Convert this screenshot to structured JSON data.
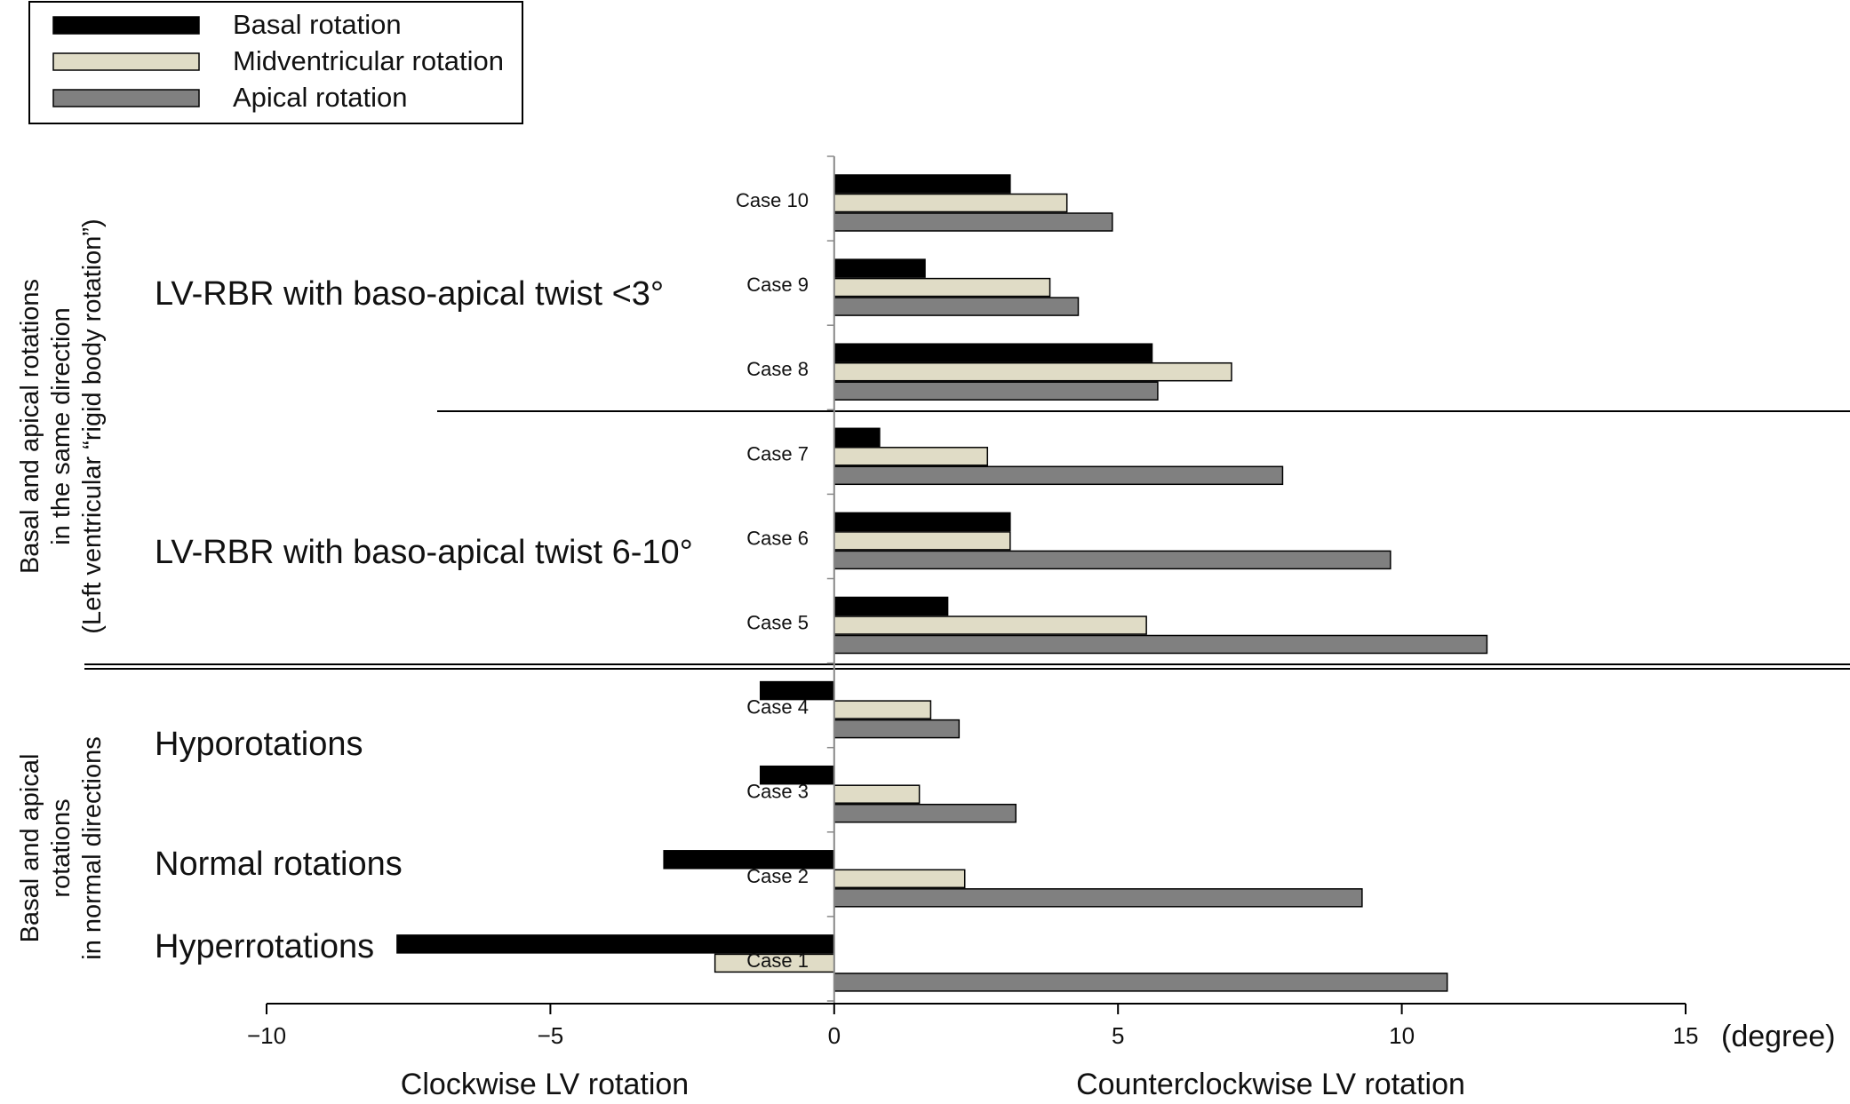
{
  "chart_data": {
    "type": "bar",
    "orientation": "horizontal",
    "categories": [
      "Case 10",
      "Case 9",
      "Case 8",
      "Case 7",
      "Case 6",
      "Case 5",
      "Case 4",
      "Case 3",
      "Case 2",
      "Case 1"
    ],
    "series": [
      {
        "name": "Basal rotation",
        "color": "#000000",
        "values": [
          3.1,
          1.6,
          5.6,
          0.8,
          3.1,
          2.0,
          -1.3,
          -1.3,
          -3.0,
          -7.7
        ]
      },
      {
        "name": "Midventricular rotation",
        "color": "#e0dcc6",
        "values": [
          4.1,
          3.8,
          7.0,
          2.7,
          3.1,
          5.5,
          1.7,
          1.5,
          2.3,
          -2.1
        ]
      },
      {
        "name": "Apical rotation",
        "color": "#808080",
        "values": [
          4.9,
          4.3,
          5.7,
          7.9,
          9.8,
          11.5,
          2.2,
          3.2,
          9.3,
          10.8
        ]
      }
    ],
    "xlim": [
      -10,
      15
    ],
    "xticks": [
      -10,
      -5,
      0,
      5,
      10,
      15
    ],
    "xtick_labels": [
      "−10",
      "−5",
      "0",
      "5",
      "10",
      "15"
    ],
    "xunit": "(degree)",
    "xlabel_left": "Clockwise LV rotation",
    "xlabel_right": "Counterclockwise LV rotation",
    "legend_position": "top-left",
    "group_labels": [
      "LV-RBR with baso-apical twist <3°",
      "LV-RBR with baso-apical twist 6-10°",
      "Hyporotations",
      "Normal rotations",
      "Hyperrotations"
    ],
    "side_labels": {
      "top": [
        "Basal and apical rotations",
        "in the same direction",
        "(Left ventricular “rigid body rotation”)"
      ],
      "bottom": [
        "Basal and apical",
        "rotations",
        "in normal directions"
      ]
    }
  }
}
